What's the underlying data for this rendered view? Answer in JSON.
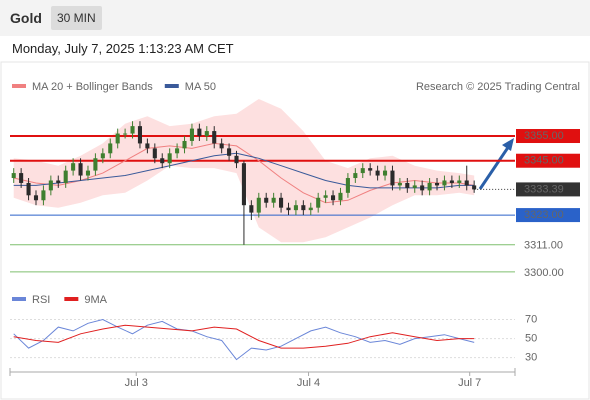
{
  "header": {
    "symbol": "Gold",
    "interval": "30 MIN",
    "datetime": "Monday, July 7, 2025 1:13:23 AM CET"
  },
  "chart_data": [
    {
      "type": "candlestick",
      "credit": "Research © 2025 Trading Central",
      "xlim": [
        -0.5,
        67.5
      ],
      "xticks": [
        {
          "value": 16.5,
          "label": "Jul 3"
        },
        {
          "value": 39.7,
          "label": "Jul 4"
        },
        {
          "value": 61.4,
          "label": "Jul 7"
        }
      ],
      "ylim": [
        3294.7,
        3371.6
      ],
      "up_color": "#3f7f2f",
      "down_color": "#2b2b2b",
      "open": [
        3338,
        3340,
        3336,
        3331,
        3329,
        3333,
        3337,
        3336,
        3341,
        3344,
        3339,
        3341,
        3346,
        3348,
        3352,
        3356,
        3356,
        3359,
        3352,
        3350,
        3346,
        3344,
        3348,
        3350,
        3353,
        3358,
        3355,
        3357,
        3352,
        3350,
        3347,
        3344,
        3327,
        3324,
        3330,
        3328,
        3330,
        3326,
        3325,
        3327,
        3325,
        3326,
        3330,
        3331,
        3329,
        3332,
        3338,
        3340,
        3342,
        3341,
        3339,
        3341,
        3335,
        3336,
        3334,
        3335,
        3333,
        3336,
        3335,
        3337,
        3336,
        3337,
        3335
      ],
      "high": [
        3342,
        3342,
        3338,
        3333,
        3335,
        3339,
        3339,
        3343,
        3346,
        3346,
        3343,
        3348,
        3350,
        3354,
        3358,
        3358,
        3361,
        3361,
        3354,
        3352,
        3348,
        3350,
        3352,
        3355,
        3360,
        3360,
        3359,
        3359,
        3354,
        3352,
        3349,
        3345,
        3329,
        3332,
        3332,
        3332,
        3332,
        3328,
        3329,
        3329,
        3328,
        3332,
        3333,
        3333,
        3334,
        3340,
        3342,
        3344,
        3344,
        3343,
        3343,
        3343,
        3338,
        3338,
        3337,
        3337,
        3338,
        3338,
        3339,
        3339,
        3339,
        3343,
        3337
      ],
      "low": [
        3336,
        3334,
        3329,
        3327,
        3327,
        3331,
        3334,
        3334,
        3339,
        3337,
        3337,
        3339,
        3344,
        3346,
        3350,
        3354,
        3354,
        3350,
        3348,
        3344,
        3342,
        3342,
        3346,
        3348,
        3351,
        3353,
        3353,
        3350,
        3348,
        3345,
        3342,
        3311,
        3321,
        3322,
        3326,
        3326,
        3324,
        3323,
        3323,
        3323,
        3323,
        3324,
        3328,
        3327,
        3327,
        3330,
        3336,
        3338,
        3339,
        3337,
        3337,
        3333,
        3333,
        3332,
        3332,
        3331,
        3331,
        3333,
        3333,
        3334,
        3334,
        3333,
        3332
      ],
      "close": [
        3340,
        3336,
        3331,
        3329,
        3333,
        3337,
        3336,
        3341,
        3344,
        3339,
        3341,
        3346,
        3348,
        3352,
        3356,
        3356,
        3359,
        3352,
        3350,
        3346,
        3344,
        3348,
        3350,
        3353,
        3358,
        3355,
        3357,
        3352,
        3350,
        3347,
        3344,
        3327,
        3324,
        3330,
        3328,
        3330,
        3326,
        3325,
        3327,
        3325,
        3326,
        3330,
        3331,
        3329,
        3332,
        3338,
        3340,
        3342,
        3341,
        3339,
        3341,
        3335,
        3336,
        3334,
        3335,
        3333,
        3336,
        3335,
        3337,
        3336,
        3337,
        3335,
        3333.39
      ],
      "series": [
        {
          "name": "MA 20 + Bollinger Bands",
          "color": "#f08080",
          "band_color": "#fde0e0",
          "x": [
            0,
            3,
            6,
            9,
            12,
            15,
            18,
            21,
            24,
            27,
            30,
            33,
            36,
            39,
            42,
            45,
            48,
            51,
            54,
            57,
            60,
            62
          ],
          "values": [
            3338,
            3336,
            3335,
            3337,
            3340,
            3345,
            3350,
            3351,
            3350,
            3352,
            3351,
            3345,
            3338,
            3332,
            3328,
            3329,
            3333,
            3336,
            3337,
            3336,
            3336,
            3335
          ],
          "upper": [
            3346,
            3345,
            3343,
            3347,
            3352,
            3360,
            3363,
            3359,
            3360,
            3363,
            3364,
            3370,
            3366,
            3357,
            3345,
            3342,
            3346,
            3347,
            3343,
            3341,
            3340,
            3339
          ],
          "lower": [
            3330,
            3327,
            3326,
            3328,
            3331,
            3332,
            3337,
            3343,
            3342,
            3342,
            3340,
            3318,
            3312,
            3312,
            3314,
            3318,
            3322,
            3327,
            3331,
            3331,
            3332,
            3331
          ]
        },
        {
          "name": "MA 50",
          "color": "#3a5a9a",
          "x": [
            0,
            3,
            6,
            9,
            12,
            15,
            18,
            21,
            24,
            27,
            30,
            33,
            36,
            39,
            42,
            45,
            48,
            51,
            54,
            57,
            60,
            62
          ],
          "values": [
            3335,
            3335,
            3336,
            3337,
            3338,
            3339,
            3341,
            3343,
            3345,
            3347,
            3348,
            3346,
            3343,
            3340,
            3337,
            3335,
            3334,
            3334,
            3334,
            3334,
            3335,
            3335
          ]
        }
      ],
      "levels": [
        {
          "value": 3355,
          "label": "3355.00",
          "color": "#e01010"
        },
        {
          "value": 3345,
          "label": "3345.00",
          "color": "#e01010"
        },
        {
          "value": 3323,
          "label": "3323.00",
          "color": "#2a62c9"
        },
        {
          "value": 3311,
          "label": "3311.00",
          "color": "#7fbf6f"
        },
        {
          "value": 3300,
          "label": "3300.00",
          "color": "#7fbf6f"
        }
      ],
      "last_price": {
        "value": 3333.39,
        "label": "3333.39",
        "color": "#333333"
      }
    },
    {
      "type": "line",
      "xlim": [
        -0.5,
        67.5
      ],
      "ylim": [
        15,
        82
      ],
      "yticks": [
        30,
        50,
        70
      ],
      "series": [
        {
          "name": "RSI",
          "color": "#6a86d8",
          "x": [
            0,
            2,
            4,
            6,
            8,
            10,
            12,
            14,
            16,
            18,
            20,
            22,
            24,
            26,
            28,
            30,
            32,
            34,
            36,
            38,
            40,
            42,
            44,
            46,
            48,
            50,
            52,
            54,
            56,
            58,
            60,
            62
          ],
          "values": [
            55,
            40,
            48,
            62,
            58,
            66,
            70,
            62,
            55,
            64,
            68,
            60,
            58,
            52,
            48,
            28,
            40,
            38,
            42,
            50,
            58,
            62,
            56,
            52,
            46,
            48,
            44,
            50,
            52,
            54,
            50,
            46
          ]
        },
        {
          "name": "9MA",
          "color": "#e02020",
          "x": [
            0,
            3,
            6,
            9,
            12,
            15,
            18,
            21,
            24,
            27,
            30,
            33,
            36,
            39,
            42,
            45,
            48,
            51,
            54,
            57,
            60,
            62
          ],
          "values": [
            52,
            48,
            46,
            55,
            60,
            64,
            62,
            60,
            58,
            62,
            60,
            48,
            40,
            40,
            42,
            45,
            52,
            56,
            52,
            48,
            50,
            50
          ]
        }
      ]
    }
  ]
}
